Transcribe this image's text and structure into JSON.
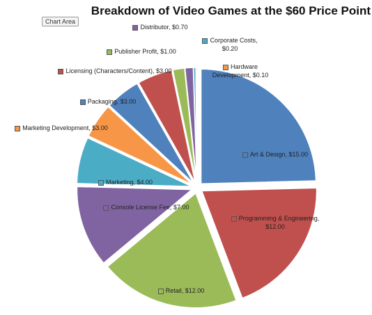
{
  "tooltip": "Chart Area",
  "chart_data": {
    "type": "pie",
    "title": "Breakdown of Video Games at the $60 Price Point",
    "values": [
      15,
      12,
      12,
      7,
      4,
      3,
      3,
      3,
      1,
      0.7,
      0.2,
      0.1
    ],
    "value_labels": [
      "Art & Design, $15.00",
      "Programming & Engineering, $12.00",
      "Retail, $12.00",
      "Console License Fee, $7.00",
      "Marketing, $4.00",
      "Marketing Development, $3.00",
      "Packaging, $3.00",
      "Licensing (Characters/Content), $3.00",
      "Publisher Profit, $1.00",
      "Distributor, $0.70",
      "Corporate Costs, $0.20",
      "Hardware Development, $0.10"
    ],
    "colors": [
      "#4f81bd",
      "#c0504d",
      "#9bbb59",
      "#8064a2",
      "#4bacc6",
      "#f79646",
      "#4f81bd",
      "#c0504d",
      "#9bbb59",
      "#8064a2",
      "#4bacc6",
      "#f79646"
    ]
  }
}
